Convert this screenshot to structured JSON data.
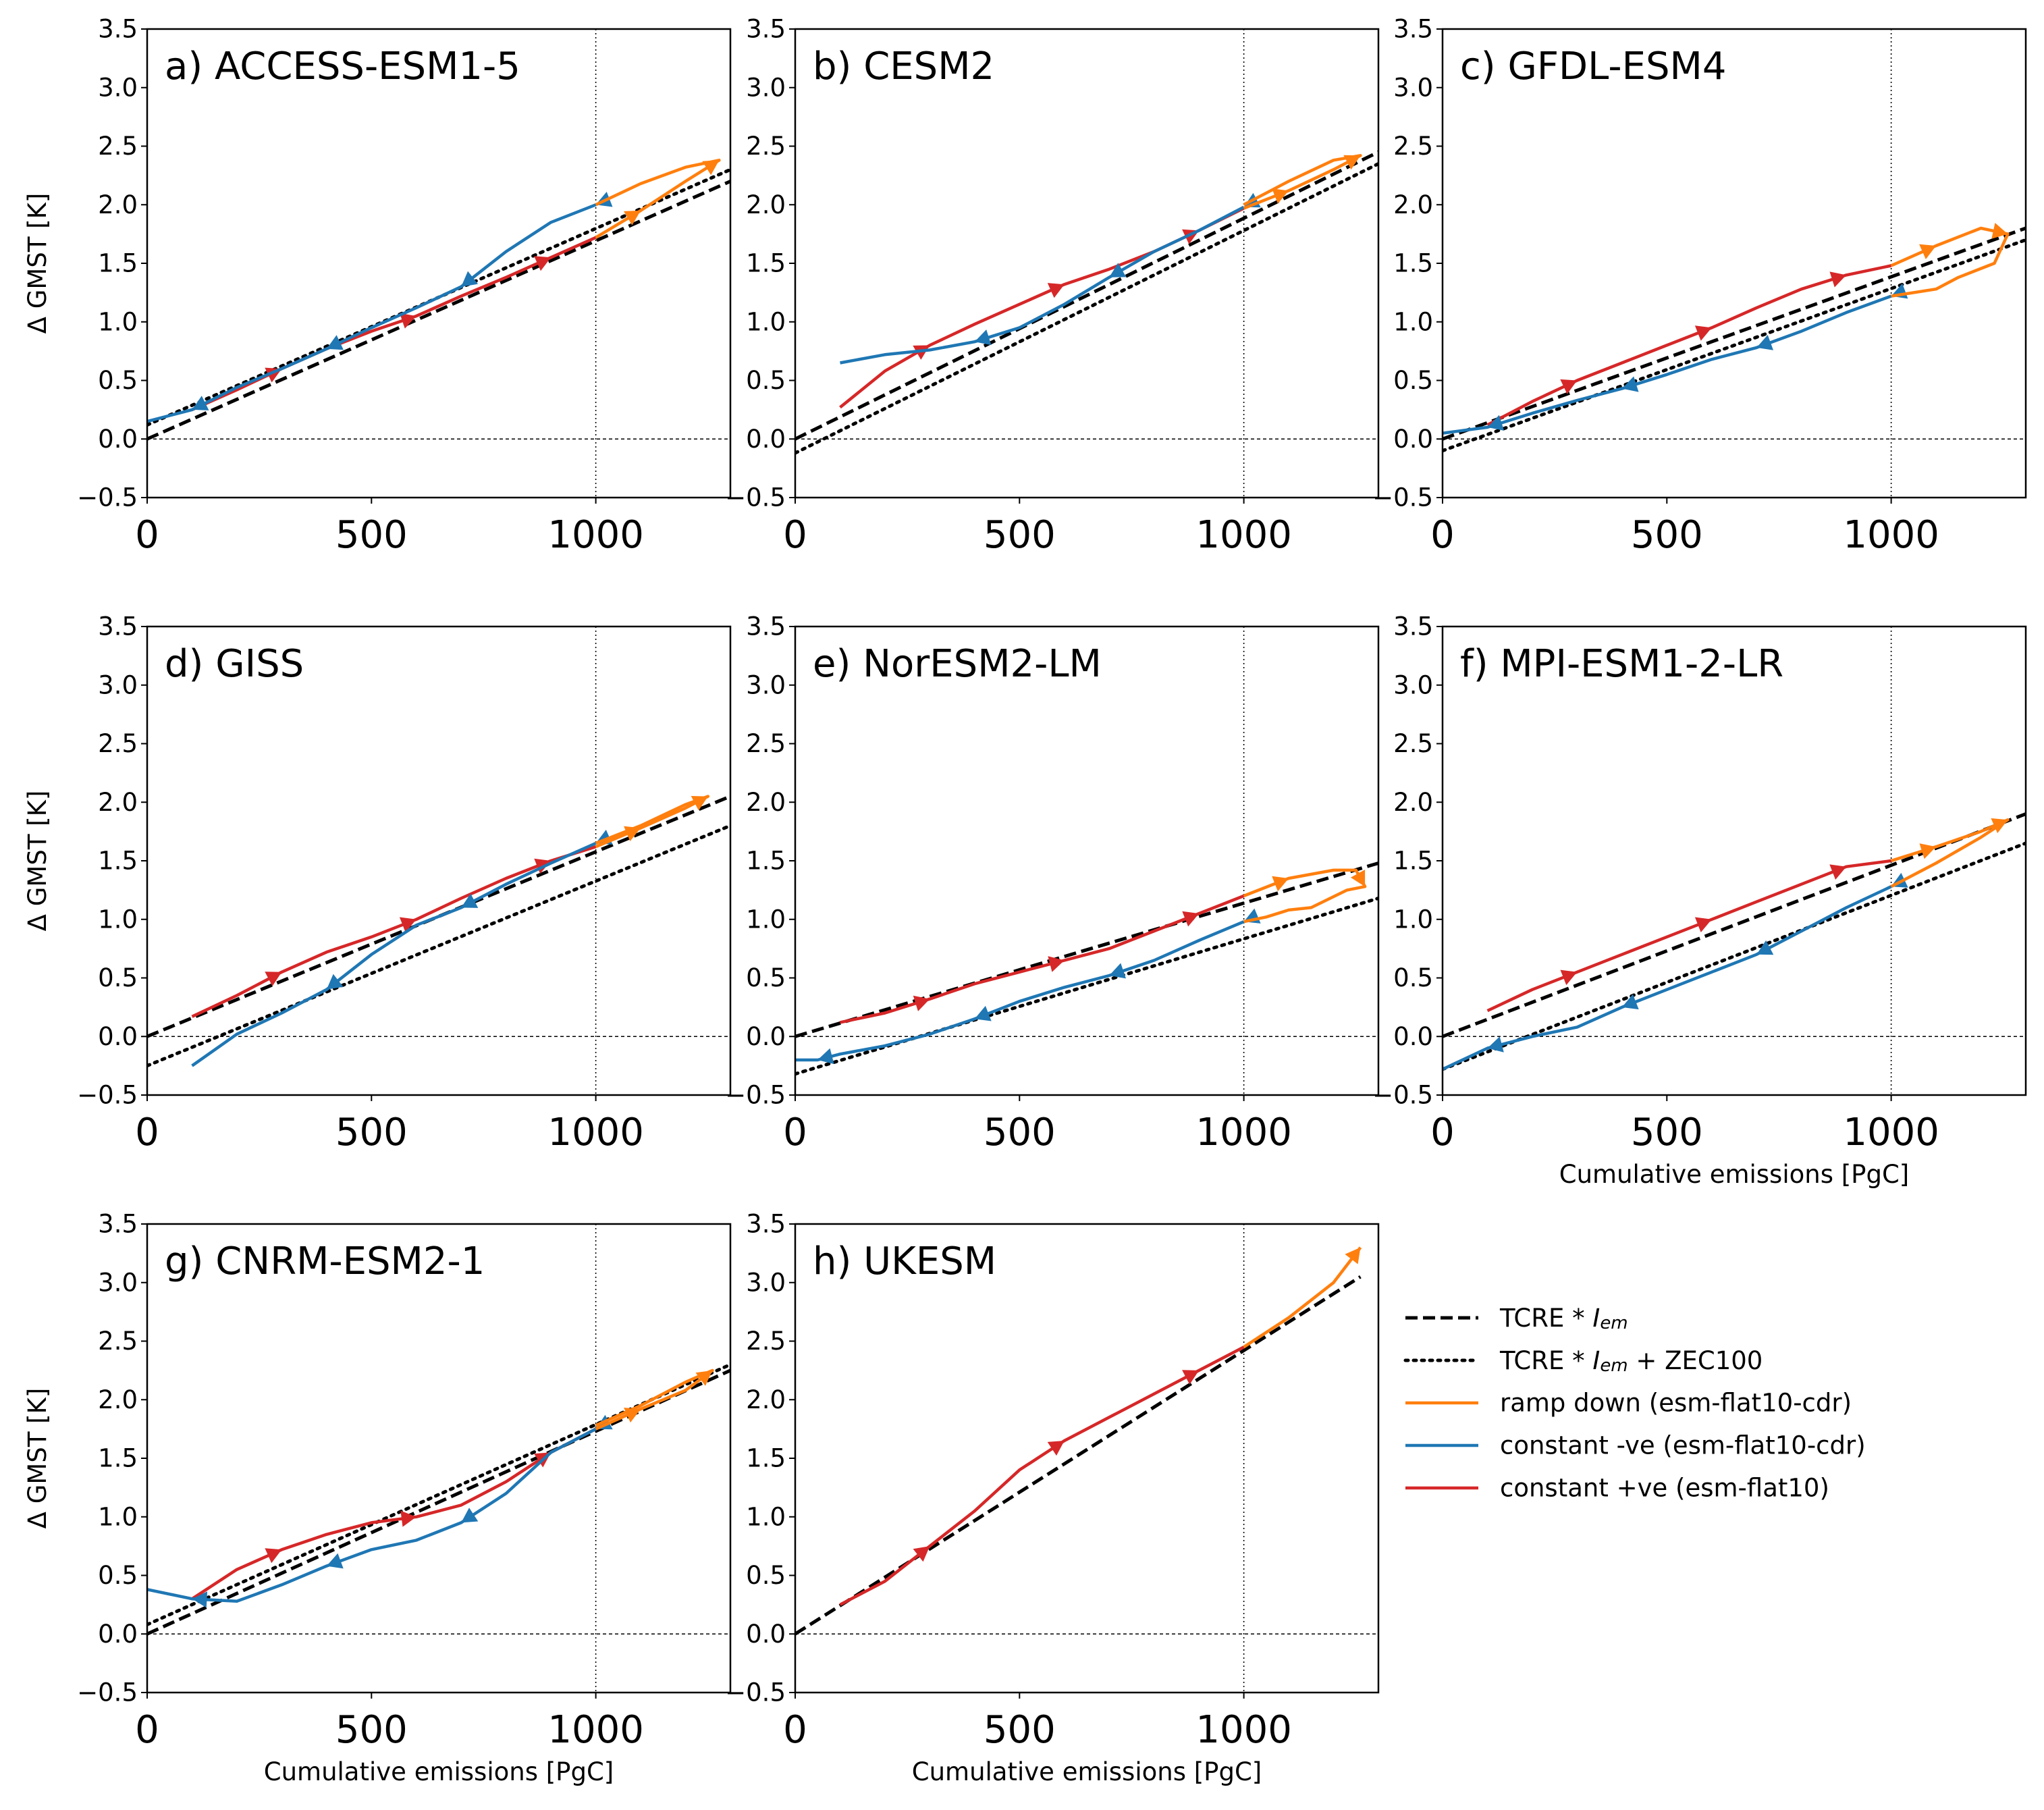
{
  "figure": {
    "ylabel": "Δ GMST [K]",
    "xlabel": "Cumulative emissions [PgC]",
    "xlim": [
      0,
      1300
    ],
    "ylim": [
      -0.5,
      3.5
    ],
    "x_ticks": [
      0,
      500,
      1000
    ],
    "y_ticks": [
      "−0.5",
      "0.0",
      "0.5",
      "1.0",
      "1.5",
      "2.0",
      "2.5",
      "3.0",
      "3.5"
    ]
  },
  "legend": {
    "items": [
      {
        "label": "TCRE * ",
        "sub": "em",
        "suffix": "",
        "style": "dashed",
        "color": "#000000"
      },
      {
        "label": "TCRE * ",
        "sub": "em",
        "suffix": " + ZEC100",
        "style": "dotted",
        "color": "#000000"
      },
      {
        "label": "ramp down (esm-flat10-cdr)",
        "style": "solid",
        "color": "#ff7f0e"
      },
      {
        "label": "constant -ve (esm-flat10-cdr)",
        "style": "solid",
        "color": "#1f77b4"
      },
      {
        "label": "constant +ve (esm-flat10)",
        "style": "solid",
        "color": "#d62728"
      }
    ],
    "italic_symbol": "I"
  },
  "colors": {
    "ramp_down": "#ff7f0e",
    "constant_neg": "#1f77b4",
    "constant_pos": "#d62728",
    "reference": "#000000"
  },
  "chart_data": [
    {
      "type": "line",
      "title": "a) ACCESS-ESM1-5",
      "xlim": [
        0,
        1300
      ],
      "ylim": [
        -0.5,
        3.5
      ],
      "vline": 1000,
      "hline": 0,
      "tcre_line": [
        [
          0,
          0.0
        ],
        [
          1300,
          2.2
        ]
      ],
      "zec_line": [
        [
          0,
          0.12
        ],
        [
          1300,
          2.3
        ]
      ],
      "series": [
        {
          "key": "constant_pos",
          "x": [
            100,
            200,
            300,
            400,
            500,
            600,
            700,
            800,
            900,
            1000
          ],
          "y": [
            0.25,
            0.42,
            0.6,
            0.77,
            0.92,
            1.05,
            1.22,
            1.38,
            1.55,
            1.72
          ],
          "arrows": [
            300,
            600,
            900
          ]
        },
        {
          "key": "constant_neg",
          "x": [
            1000,
            900,
            800,
            700,
            600,
            500,
            400,
            300,
            200,
            100,
            0
          ],
          "y": [
            2.0,
            1.85,
            1.6,
            1.3,
            1.12,
            0.95,
            0.77,
            0.6,
            0.44,
            0.25,
            0.15
          ],
          "arrows": [
            1000,
            700,
            400,
            100
          ]
        },
        {
          "key": "ramp_down",
          "x": [
            1000,
            1100,
            1200,
            1275,
            1200,
            1100,
            1000
          ],
          "y": [
            1.72,
            1.95,
            2.2,
            2.38,
            2.32,
            2.18,
            2.0
          ],
          "arrows": [
            1275,
            1100
          ]
        }
      ]
    },
    {
      "type": "line",
      "title": "b) CESM2",
      "xlim": [
        0,
        1300
      ],
      "ylim": [
        -0.5,
        3.5
      ],
      "vline": 1000,
      "hline": 0,
      "tcre_line": [
        [
          0,
          0.0
        ],
        [
          1300,
          2.45
        ]
      ],
      "zec_line": [
        [
          0,
          -0.12
        ],
        [
          1300,
          2.35
        ]
      ],
      "series": [
        {
          "key": "constant_pos",
          "x": [
            100,
            200,
            300,
            400,
            500,
            600,
            700,
            800,
            900,
            1000
          ],
          "y": [
            0.27,
            0.58,
            0.8,
            0.98,
            1.15,
            1.32,
            1.45,
            1.6,
            1.78,
            1.97
          ],
          "arrows": [
            300,
            600,
            900
          ]
        },
        {
          "key": "constant_neg",
          "x": [
            1000,
            900,
            800,
            700,
            600,
            500,
            400,
            300,
            200,
            100
          ],
          "y": [
            1.98,
            1.78,
            1.6,
            1.38,
            1.15,
            0.95,
            0.83,
            0.76,
            0.72,
            0.65
          ],
          "arrows": [
            1000,
            700,
            400
          ]
        },
        {
          "key": "ramp_down",
          "x": [
            1000,
            1100,
            1200,
            1260,
            1200,
            1100,
            1000
          ],
          "y": [
            1.97,
            2.12,
            2.3,
            2.42,
            2.38,
            2.2,
            2.0
          ],
          "arrows": [
            1260,
            1100
          ]
        }
      ]
    },
    {
      "type": "line",
      "title": "c) GFDL-ESM4",
      "xlim": [
        0,
        1300
      ],
      "ylim": [
        -0.5,
        3.5
      ],
      "vline": 1000,
      "hline": 0,
      "tcre_line": [
        [
          0,
          0.0
        ],
        [
          1300,
          1.8
        ]
      ],
      "zec_line": [
        [
          0,
          -0.1
        ],
        [
          1300,
          1.7
        ]
      ],
      "series": [
        {
          "key": "constant_pos",
          "x": [
            100,
            200,
            300,
            400,
            500,
            600,
            700,
            800,
            900,
            1000
          ],
          "y": [
            0.12,
            0.32,
            0.5,
            0.65,
            0.8,
            0.95,
            1.12,
            1.28,
            1.4,
            1.48
          ],
          "arrows": [
            300,
            600,
            900
          ]
        },
        {
          "key": "constant_neg",
          "x": [
            1000,
            900,
            800,
            700,
            600,
            500,
            400,
            300,
            200,
            100,
            0
          ],
          "y": [
            1.22,
            1.08,
            0.92,
            0.78,
            0.68,
            0.55,
            0.43,
            0.33,
            0.22,
            0.1,
            0.05
          ],
          "arrows": [
            1000,
            700,
            400,
            100
          ]
        },
        {
          "key": "ramp_down",
          "x": [
            1000,
            1100,
            1200,
            1260,
            1230,
            1150,
            1100,
            1000
          ],
          "y": [
            1.48,
            1.65,
            1.8,
            1.75,
            1.5,
            1.38,
            1.28,
            1.22
          ],
          "arrows": [
            1260,
            1100
          ]
        }
      ]
    },
    {
      "type": "line",
      "title": "d) GISS",
      "xlim": [
        0,
        1300
      ],
      "ylim": [
        -0.5,
        3.5
      ],
      "vline": 1000,
      "hline": 0,
      "tcre_line": [
        [
          0,
          0.0
        ],
        [
          1300,
          2.05
        ]
      ],
      "zec_line": [
        [
          0,
          -0.25
        ],
        [
          1300,
          1.8
        ]
      ],
      "series": [
        {
          "key": "constant_pos",
          "x": [
            100,
            200,
            300,
            400,
            500,
            600,
            700,
            800,
            900,
            1000
          ],
          "y": [
            0.17,
            0.35,
            0.55,
            0.72,
            0.85,
            1.0,
            1.18,
            1.35,
            1.5,
            1.62
          ],
          "arrows": [
            300,
            600,
            900
          ]
        },
        {
          "key": "constant_neg",
          "x": [
            1000,
            900,
            800,
            700,
            600,
            500,
            400,
            300,
            200,
            100
          ],
          "y": [
            1.65,
            1.48,
            1.3,
            1.1,
            0.95,
            0.7,
            0.4,
            0.2,
            0.02,
            -0.25
          ],
          "arrows": [
            1000,
            700,
            400
          ]
        },
        {
          "key": "ramp_down",
          "x": [
            1000,
            1100,
            1200,
            1250,
            1200,
            1100,
            1000
          ],
          "y": [
            1.62,
            1.78,
            1.95,
            2.05,
            1.98,
            1.8,
            1.65
          ],
          "arrows": [
            1250,
            1100
          ]
        }
      ]
    },
    {
      "type": "line",
      "title": "e) NorESM2-LM",
      "xlim": [
        0,
        1300
      ],
      "ylim": [
        -0.5,
        3.5
      ],
      "vline": 1000,
      "hline": 0,
      "tcre_line": [
        [
          0,
          0.0
        ],
        [
          1300,
          1.48
        ]
      ],
      "zec_line": [
        [
          0,
          -0.32
        ],
        [
          1300,
          1.18
        ]
      ],
      "series": [
        {
          "key": "constant_pos",
          "x": [
            100,
            200,
            300,
            400,
            500,
            600,
            700,
            800,
            900,
            1000
          ],
          "y": [
            0.12,
            0.2,
            0.32,
            0.45,
            0.55,
            0.65,
            0.75,
            0.9,
            1.05,
            1.2
          ],
          "arrows": [
            300,
            600,
            900
          ]
        },
        {
          "key": "constant_neg",
          "x": [
            1000,
            900,
            800,
            700,
            600,
            500,
            400,
            300,
            200,
            100,
            50,
            0
          ],
          "y": [
            0.98,
            0.82,
            0.65,
            0.52,
            0.42,
            0.3,
            0.15,
            0.02,
            -0.08,
            -0.15,
            -0.2,
            -0.2
          ],
          "arrows": [
            1000,
            700,
            400,
            50
          ]
        },
        {
          "key": "ramp_down",
          "x": [
            1000,
            1100,
            1200,
            1250,
            1270,
            1230,
            1150,
            1100,
            1050,
            1000
          ],
          "y": [
            1.2,
            1.35,
            1.42,
            1.42,
            1.28,
            1.25,
            1.1,
            1.08,
            1.02,
            0.98
          ],
          "arrows": [
            1270,
            1100
          ]
        }
      ]
    },
    {
      "type": "line",
      "title": "f) MPI-ESM1-2-LR",
      "xlim": [
        0,
        1300
      ],
      "ylim": [
        -0.5,
        3.5
      ],
      "vline": 1000,
      "hline": 0,
      "tcre_line": [
        [
          0,
          0.0
        ],
        [
          1300,
          1.9
        ]
      ],
      "zec_line": [
        [
          0,
          -0.28
        ],
        [
          1300,
          1.65
        ]
      ],
      "series": [
        {
          "key": "constant_pos",
          "x": [
            100,
            200,
            300,
            400,
            500,
            600,
            700,
            800,
            900,
            1000
          ],
          "y": [
            0.22,
            0.4,
            0.55,
            0.7,
            0.85,
            1.0,
            1.15,
            1.3,
            1.45,
            1.5
          ],
          "arrows": [
            300,
            600,
            900
          ]
        },
        {
          "key": "constant_neg",
          "x": [
            1000,
            900,
            800,
            700,
            600,
            500,
            400,
            300,
            200,
            100,
            0
          ],
          "y": [
            1.28,
            1.1,
            0.9,
            0.7,
            0.55,
            0.4,
            0.25,
            0.08,
            0.0,
            -0.1,
            -0.28
          ],
          "arrows": [
            1000,
            700,
            400,
            100
          ]
        },
        {
          "key": "ramp_down",
          "x": [
            1000,
            1100,
            1200,
            1260,
            1200,
            1100,
            1000
          ],
          "y": [
            1.5,
            1.62,
            1.75,
            1.85,
            1.7,
            1.48,
            1.28
          ],
          "arrows": [
            1260,
            1100
          ]
        }
      ]
    },
    {
      "type": "line",
      "title": "g) CNRM-ESM2-1",
      "xlim": [
        0,
        1300
      ],
      "ylim": [
        -0.5,
        3.5
      ],
      "vline": 1000,
      "hline": 0,
      "tcre_line": [
        [
          0,
          0.0
        ],
        [
          1300,
          2.25
        ]
      ],
      "zec_line": [
        [
          0,
          0.08
        ],
        [
          1300,
          2.3
        ]
      ],
      "series": [
        {
          "key": "constant_pos",
          "x": [
            100,
            200,
            300,
            400,
            500,
            600,
            700,
            800,
            900,
            1000
          ],
          "y": [
            0.3,
            0.55,
            0.72,
            0.85,
            0.95,
            1.0,
            1.1,
            1.3,
            1.55,
            1.75
          ],
          "arrows": [
            300,
            600,
            900
          ]
        },
        {
          "key": "constant_neg",
          "x": [
            1000,
            900,
            800,
            700,
            600,
            500,
            400,
            300,
            200,
            100,
            0
          ],
          "y": [
            1.75,
            1.55,
            1.2,
            0.95,
            0.8,
            0.72,
            0.58,
            0.42,
            0.28,
            0.3,
            0.38
          ],
          "arrows": [
            1000,
            700,
            400,
            100
          ]
        },
        {
          "key": "ramp_down",
          "x": [
            1000,
            1100,
            1200,
            1260,
            1200,
            1100,
            1000
          ],
          "y": [
            1.75,
            1.92,
            2.08,
            2.25,
            2.15,
            1.95,
            1.78
          ],
          "arrows": [
            1260,
            1100
          ]
        }
      ]
    },
    {
      "type": "line",
      "title": "h) UKESM",
      "xlim": [
        0,
        1300
      ],
      "ylim": [
        -0.5,
        3.5
      ],
      "vline": 1000,
      "hline": 0,
      "tcre_line": [
        [
          0,
          0.0
        ],
        [
          1260,
          3.05
        ]
      ],
      "zec_line": null,
      "series": [
        {
          "key": "constant_pos",
          "x": [
            100,
            200,
            300,
            400,
            500,
            600,
            700,
            800,
            900,
            1000
          ],
          "y": [
            0.25,
            0.45,
            0.75,
            1.05,
            1.4,
            1.65,
            1.85,
            2.05,
            2.25,
            2.45
          ],
          "arrows": [
            300,
            600,
            900
          ]
        },
        {
          "key": "ramp_down",
          "x": [
            1000,
            1100,
            1200,
            1260
          ],
          "y": [
            2.45,
            2.7,
            3.0,
            3.3
          ],
          "arrows": [
            1260
          ]
        }
      ]
    }
  ]
}
